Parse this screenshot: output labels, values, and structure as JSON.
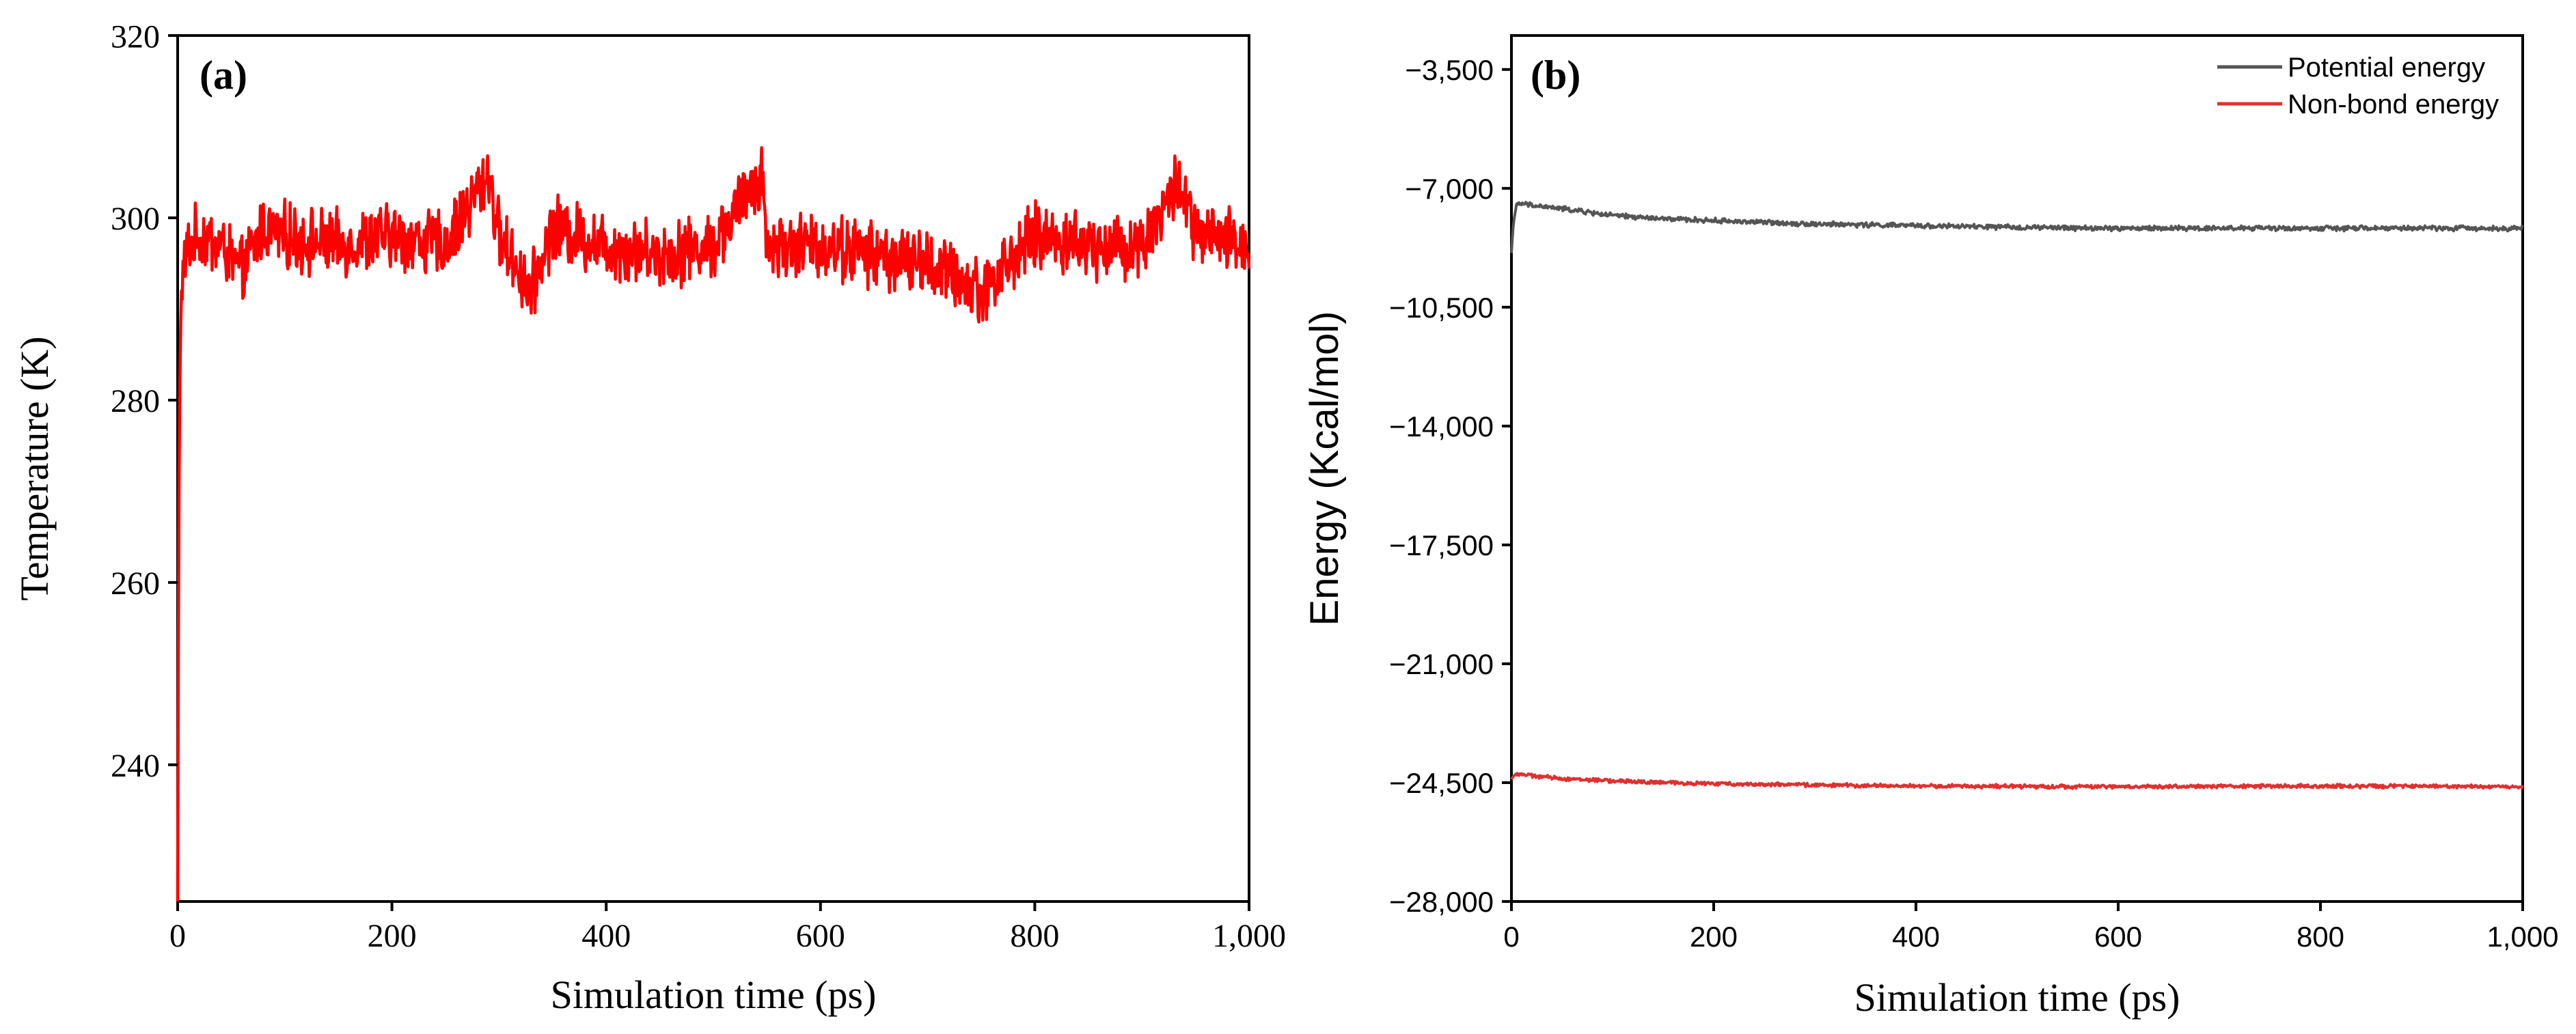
{
  "figure": {
    "panels": [
      "(a)",
      "(b)"
    ]
  },
  "chart_data": [
    {
      "id": "temperature",
      "type": "line",
      "panel_label": "(a)",
      "title": "",
      "xlabel": "Simulation time (ps)",
      "ylabel": "Temperature (K)",
      "xlim": [
        0,
        1000
      ],
      "ylim": [
        225,
        320
      ],
      "xticks": [
        0,
        200,
        400,
        600,
        800,
        1000
      ],
      "xtick_labels": [
        "0",
        "200",
        "400",
        "600",
        "800",
        "1,000"
      ],
      "yticks": [
        240,
        260,
        280,
        300,
        320
      ],
      "ytick_labels": [
        "240",
        "260",
        "280",
        "300",
        "320"
      ],
      "grid": false,
      "legend": null,
      "series": [
        {
          "name": "Temperature",
          "color": "#ff0000",
          "x": [
            0,
            1,
            2,
            3,
            5,
            8,
            12,
            20,
            40,
            60,
            80,
            100,
            150,
            200,
            250,
            290,
            300,
            330,
            350,
            400,
            450,
            500,
            545,
            550,
            600,
            650,
            700,
            750,
            800,
            850,
            900,
            935,
            950,
            1000
          ],
          "y": [
            225,
            265,
            282,
            290,
            294,
            296,
            297,
            298,
            297,
            294,
            299,
            298,
            297,
            298,
            297,
            305,
            298,
            292,
            299,
            297,
            296,
            297,
            305,
            297,
            297,
            296,
            295,
            292,
            298,
            297,
            297,
            304,
            298,
            297
          ],
          "noise_amplitude": 3.0
        }
      ]
    },
    {
      "id": "energy",
      "type": "line",
      "panel_label": "(b)",
      "title": "",
      "xlabel": "Simulation time (ps)",
      "ylabel": "Energy (Kcal/mol)",
      "xlim": [
        0,
        1000
      ],
      "ylim": [
        -28000,
        -2500
      ],
      "xticks": [
        0,
        200,
        400,
        600,
        800,
        1000
      ],
      "xtick_labels": [
        "0",
        "200",
        "400",
        "600",
        "800",
        "1,000"
      ],
      "yticks": [
        -3500,
        -7000,
        -10500,
        -14000,
        -17500,
        -21000,
        -24500,
        -28000
      ],
      "ytick_labels": [
        "−3,500",
        "−7,000",
        "−10,500",
        "−14,000",
        "−17,500",
        "−21,000",
        "−24,500",
        "−28,000"
      ],
      "grid": false,
      "legend": "top-right",
      "series": [
        {
          "name": "Potential energy",
          "color": "#555555",
          "x": [
            0,
            2,
            5,
            10,
            20,
            50,
            100,
            150,
            200,
            300,
            400,
            500,
            600,
            700,
            800,
            900,
            1000
          ],
          "y": [
            -8900,
            -8000,
            -7500,
            -7450,
            -7500,
            -7600,
            -7800,
            -7900,
            -7950,
            -8050,
            -8100,
            -8150,
            -8180,
            -8170,
            -8180,
            -8170,
            -8180
          ],
          "noise_amplitude": 60
        },
        {
          "name": "Non-bond energy",
          "color": "#e03030",
          "x": [
            0,
            2,
            5,
            10,
            20,
            50,
            100,
            150,
            200,
            300,
            400,
            500,
            600,
            700,
            800,
            900,
            1000
          ],
          "y": [
            -24400,
            -24300,
            -24250,
            -24250,
            -24300,
            -24380,
            -24450,
            -24500,
            -24530,
            -24570,
            -24600,
            -24610,
            -24620,
            -24610,
            -24600,
            -24610,
            -24620
          ],
          "noise_amplitude": 45
        }
      ]
    }
  ]
}
